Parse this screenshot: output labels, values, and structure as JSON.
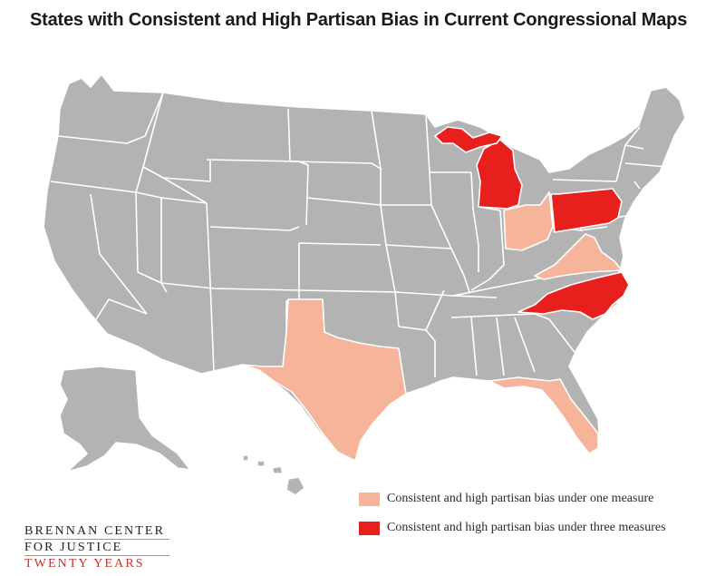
{
  "title": "States with Consistent and High Partisan Bias in Current Congressional Maps",
  "colors": {
    "base": "#b3b3b3",
    "one_measure": "#f6b49b",
    "three_measures": "#e8201d",
    "borders": "#ffffff"
  },
  "legend": {
    "items": [
      {
        "label": "Consistent and high partisan bias under one measure",
        "color": "#f6b49b"
      },
      {
        "label": "Consistent and high partisan bias under three measures",
        "color": "#e8201d"
      }
    ]
  },
  "highlighted_states": {
    "three_measures": [
      "Michigan",
      "Pennsylvania",
      "North Carolina"
    ],
    "one_measure": [
      "Texas",
      "Florida",
      "Ohio",
      "Virginia"
    ]
  },
  "logo": {
    "line1": "BRENNAN CENTER",
    "line2": "FOR JUSTICE",
    "line3": "TWENTY YEARS"
  }
}
